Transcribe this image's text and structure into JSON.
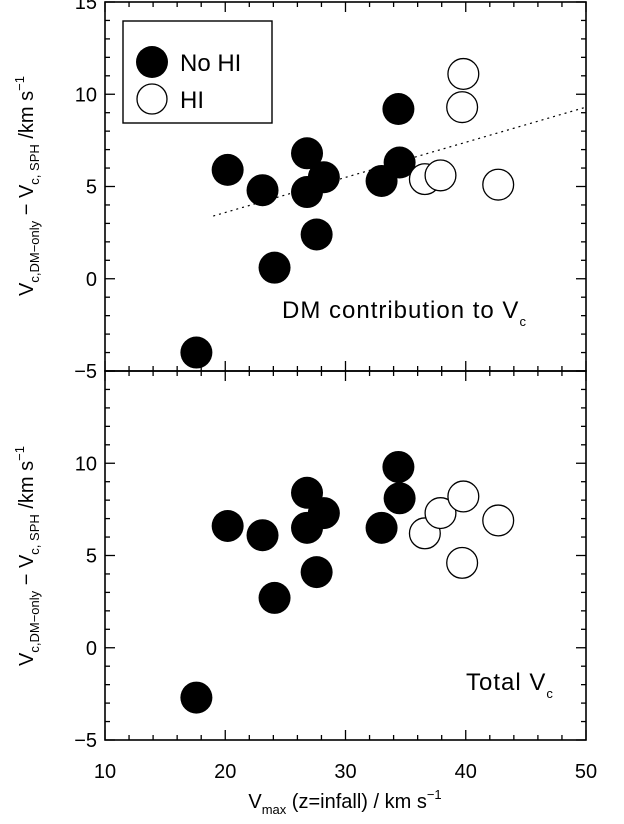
{
  "chart_data": [
    {
      "type": "scatter",
      "panel": "top",
      "xlim": [
        10,
        50
      ],
      "ylim": [
        -5,
        15
      ],
      "x_ticks": [
        10,
        20,
        30,
        40,
        50
      ],
      "y_ticks": [
        -5,
        0,
        5,
        10,
        15
      ],
      "x_tick_labels": [
        "10",
        "20",
        "30",
        "40",
        "50"
      ],
      "y_tick_labels": [
        "−5",
        "0",
        "5",
        "10",
        "15"
      ],
      "ylabel": {
        "v1": "V",
        "v1_sub": "c,DM−only",
        "minus": " − V",
        "v2_sub": "c, SPH",
        "unit": " /km s",
        "exp": "−1"
      },
      "annotation": {
        "text": "DM contribution to V",
        "sub": "c"
      },
      "legend": {
        "placement": "top-left",
        "entries": [
          {
            "label": "No HI",
            "style": "filled"
          },
          {
            "label": "HI",
            "style": "open"
          }
        ]
      },
      "series": [
        {
          "name": "No HI",
          "style": "filled",
          "points": [
            {
              "x": 17.6,
              "y": -4.0
            },
            {
              "x": 20.2,
              "y": 5.9
            },
            {
              "x": 23.1,
              "y": 4.8
            },
            {
              "x": 24.1,
              "y": 0.6
            },
            {
              "x": 26.8,
              "y": 6.8
            },
            {
              "x": 26.8,
              "y": 4.7
            },
            {
              "x": 27.6,
              "y": 2.4
            },
            {
              "x": 28.2,
              "y": 5.5
            },
            {
              "x": 33.0,
              "y": 5.3
            },
            {
              "x": 34.4,
              "y": 9.2
            },
            {
              "x": 34.5,
              "y": 6.3
            }
          ]
        },
        {
          "name": "HI",
          "style": "open",
          "points": [
            {
              "x": 36.6,
              "y": 5.4
            },
            {
              "x": 37.9,
              "y": 5.6
            },
            {
              "x": 39.7,
              "y": 9.3
            },
            {
              "x": 39.8,
              "y": 11.1
            },
            {
              "x": 42.7,
              "y": 5.1
            }
          ]
        }
      ],
      "fit_line": {
        "style": "dotted",
        "x": [
          19.0,
          50.0
        ],
        "y": [
          3.4,
          9.3
        ]
      }
    },
    {
      "type": "scatter",
      "panel": "bottom",
      "xlim": [
        10,
        50
      ],
      "ylim": [
        -5,
        15
      ],
      "x_ticks": [
        10,
        20,
        30,
        40,
        50
      ],
      "y_ticks": [
        -5,
        0,
        5,
        10
      ],
      "x_tick_labels": [
        "10",
        "20",
        "30",
        "40",
        "50"
      ],
      "y_tick_labels": [
        "−5",
        "0",
        "5",
        "10"
      ],
      "xlabel": {
        "v": "V",
        "sub": "max",
        "text": " (z=infall) / km s",
        "exp": "−1"
      },
      "ylabel": {
        "v1": "V",
        "v1_sub": "c,DM−only",
        "minus": " − V",
        "v2_sub": "c, SPH",
        "unit": " /km s",
        "exp": "−1"
      },
      "annotation": {
        "text": "Total V",
        "sub": "c"
      },
      "series": [
        {
          "name": "No HI",
          "style": "filled",
          "points": [
            {
              "x": 17.6,
              "y": -2.7
            },
            {
              "x": 20.2,
              "y": 6.6
            },
            {
              "x": 23.1,
              "y": 6.1
            },
            {
              "x": 24.1,
              "y": 2.7
            },
            {
              "x": 26.8,
              "y": 8.4
            },
            {
              "x": 26.8,
              "y": 6.5
            },
            {
              "x": 27.6,
              "y": 4.1
            },
            {
              "x": 28.2,
              "y": 7.3
            },
            {
              "x": 33.0,
              "y": 6.5
            },
            {
              "x": 34.4,
              "y": 9.8
            },
            {
              "x": 34.5,
              "y": 8.1
            }
          ]
        },
        {
          "name": "HI",
          "style": "open",
          "points": [
            {
              "x": 36.6,
              "y": 6.2
            },
            {
              "x": 37.9,
              "y": 7.3
            },
            {
              "x": 39.7,
              "y": 4.6
            },
            {
              "x": 39.8,
              "y": 8.2
            },
            {
              "x": 42.7,
              "y": 6.9
            }
          ]
        }
      ]
    }
  ]
}
